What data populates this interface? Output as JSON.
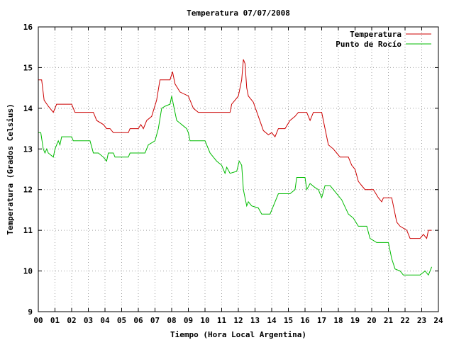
{
  "chart_data": {
    "type": "line",
    "title": "Temperatura 07/07/2008",
    "xlabel": "Tiempo (Hora Local Argentina)",
    "ylabel": "Temperatura (Grados Celsius)",
    "xlim": [
      0,
      24
    ],
    "ylim": [
      9,
      16
    ],
    "x_ticks": [
      "00",
      "01",
      "02",
      "03",
      "04",
      "05",
      "06",
      "07",
      "08",
      "09",
      "10",
      "11",
      "12",
      "13",
      "14",
      "15",
      "16",
      "17",
      "18",
      "19",
      "20",
      "21",
      "22",
      "23",
      "24"
    ],
    "y_ticks": [
      "9",
      "10",
      "11",
      "12",
      "13",
      "14",
      "15",
      "16"
    ],
    "grid": true,
    "legend_position": "top-right",
    "series": [
      {
        "name": "Temperatura",
        "color": "#cc0000",
        "points": [
          [
            0.0,
            14.7
          ],
          [
            0.2,
            14.7
          ],
          [
            0.35,
            14.2
          ],
          [
            0.6,
            14.05
          ],
          [
            0.9,
            13.9
          ],
          [
            1.1,
            14.1
          ],
          [
            1.3,
            14.1
          ],
          [
            2.0,
            14.1
          ],
          [
            2.2,
            13.9
          ],
          [
            2.5,
            13.9
          ],
          [
            3.3,
            13.9
          ],
          [
            3.5,
            13.7
          ],
          [
            3.9,
            13.6
          ],
          [
            4.1,
            13.5
          ],
          [
            4.3,
            13.5
          ],
          [
            4.5,
            13.4
          ],
          [
            5.0,
            13.4
          ],
          [
            5.4,
            13.4
          ],
          [
            5.5,
            13.5
          ],
          [
            6.0,
            13.5
          ],
          [
            6.15,
            13.6
          ],
          [
            6.3,
            13.5
          ],
          [
            6.5,
            13.7
          ],
          [
            6.8,
            13.8
          ],
          [
            7.1,
            14.2
          ],
          [
            7.3,
            14.7
          ],
          [
            7.9,
            14.7
          ],
          [
            8.05,
            14.9
          ],
          [
            8.2,
            14.6
          ],
          [
            8.5,
            14.4
          ],
          [
            9.0,
            14.3
          ],
          [
            9.3,
            14.0
          ],
          [
            9.6,
            13.9
          ],
          [
            10.5,
            13.9
          ],
          [
            11.5,
            13.9
          ],
          [
            11.6,
            14.1
          ],
          [
            11.8,
            14.2
          ],
          [
            12.0,
            14.3
          ],
          [
            12.2,
            14.7
          ],
          [
            12.3,
            15.2
          ],
          [
            12.4,
            15.1
          ],
          [
            12.5,
            14.5
          ],
          [
            12.6,
            14.3
          ],
          [
            12.9,
            14.15
          ],
          [
            13.2,
            13.8
          ],
          [
            13.5,
            13.45
          ],
          [
            13.8,
            13.35
          ],
          [
            14.0,
            13.4
          ],
          [
            14.2,
            13.3
          ],
          [
            14.4,
            13.5
          ],
          [
            14.8,
            13.5
          ],
          [
            15.1,
            13.7
          ],
          [
            15.4,
            13.8
          ],
          [
            15.6,
            13.9
          ],
          [
            16.1,
            13.9
          ],
          [
            16.3,
            13.7
          ],
          [
            16.5,
            13.9
          ],
          [
            17.0,
            13.9
          ],
          [
            17.2,
            13.5
          ],
          [
            17.4,
            13.1
          ],
          [
            17.7,
            13.0
          ],
          [
            17.9,
            12.9
          ],
          [
            18.1,
            12.8
          ],
          [
            18.6,
            12.8
          ],
          [
            18.8,
            12.6
          ],
          [
            19.0,
            12.5
          ],
          [
            19.2,
            12.2
          ],
          [
            19.4,
            12.1
          ],
          [
            19.6,
            12.0
          ],
          [
            20.1,
            12.0
          ],
          [
            20.4,
            11.8
          ],
          [
            20.6,
            11.7
          ],
          [
            20.7,
            11.8
          ],
          [
            21.2,
            11.8
          ],
          [
            21.5,
            11.2
          ],
          [
            21.7,
            11.1
          ],
          [
            22.1,
            11.0
          ],
          [
            22.3,
            10.8
          ],
          [
            22.9,
            10.8
          ],
          [
            23.1,
            10.9
          ],
          [
            23.3,
            10.8
          ],
          [
            23.4,
            11.0
          ],
          [
            23.6,
            11.0
          ]
        ]
      },
      {
        "name": "Punto de Rocío",
        "color": "#00bb00",
        "points": [
          [
            0.0,
            13.4
          ],
          [
            0.15,
            13.4
          ],
          [
            0.3,
            13.0
          ],
          [
            0.4,
            12.9
          ],
          [
            0.5,
            13.0
          ],
          [
            0.6,
            12.9
          ],
          [
            0.9,
            12.8
          ],
          [
            1.0,
            13.0
          ],
          [
            1.2,
            13.2
          ],
          [
            1.3,
            13.1
          ],
          [
            1.4,
            13.3
          ],
          [
            2.0,
            13.3
          ],
          [
            2.1,
            13.2
          ],
          [
            2.5,
            13.2
          ],
          [
            3.1,
            13.2
          ],
          [
            3.3,
            12.9
          ],
          [
            3.6,
            12.9
          ],
          [
            3.9,
            12.8
          ],
          [
            4.1,
            12.7
          ],
          [
            4.2,
            12.9
          ],
          [
            4.5,
            12.9
          ],
          [
            4.6,
            12.8
          ],
          [
            5.4,
            12.8
          ],
          [
            5.5,
            12.9
          ],
          [
            6.0,
            12.9
          ],
          [
            6.4,
            12.9
          ],
          [
            6.6,
            13.1
          ],
          [
            6.8,
            13.15
          ],
          [
            7.0,
            13.2
          ],
          [
            7.2,
            13.5
          ],
          [
            7.4,
            14.0
          ],
          [
            7.6,
            14.05
          ],
          [
            7.9,
            14.1
          ],
          [
            8.0,
            14.3
          ],
          [
            8.15,
            14.0
          ],
          [
            8.3,
            13.7
          ],
          [
            8.6,
            13.6
          ],
          [
            8.9,
            13.5
          ],
          [
            9.0,
            13.4
          ],
          [
            9.1,
            13.2
          ],
          [
            9.3,
            13.2
          ],
          [
            10.0,
            13.2
          ],
          [
            10.3,
            12.9
          ],
          [
            10.5,
            12.8
          ],
          [
            10.7,
            12.7
          ],
          [
            11.0,
            12.6
          ],
          [
            11.2,
            12.4
          ],
          [
            11.3,
            12.55
          ],
          [
            11.5,
            12.4
          ],
          [
            11.9,
            12.45
          ],
          [
            12.05,
            12.7
          ],
          [
            12.2,
            12.6
          ],
          [
            12.3,
            12.0
          ],
          [
            12.4,
            11.8
          ],
          [
            12.5,
            11.6
          ],
          [
            12.6,
            11.7
          ],
          [
            12.8,
            11.6
          ],
          [
            13.2,
            11.55
          ],
          [
            13.4,
            11.4
          ],
          [
            13.9,
            11.4
          ],
          [
            14.1,
            11.6
          ],
          [
            14.4,
            11.9
          ],
          [
            15.1,
            11.9
          ],
          [
            15.4,
            12.0
          ],
          [
            15.5,
            12.3
          ],
          [
            16.0,
            12.3
          ],
          [
            16.1,
            12.0
          ],
          [
            16.3,
            12.15
          ],
          [
            16.6,
            12.05
          ],
          [
            16.8,
            12.0
          ],
          [
            17.0,
            11.8
          ],
          [
            17.2,
            12.1
          ],
          [
            17.5,
            12.1
          ],
          [
            17.8,
            11.95
          ],
          [
            18.2,
            11.75
          ],
          [
            18.6,
            11.4
          ],
          [
            18.9,
            11.3
          ],
          [
            19.2,
            11.1
          ],
          [
            19.7,
            11.1
          ],
          [
            19.9,
            10.8
          ],
          [
            20.3,
            10.7
          ],
          [
            21.0,
            10.7
          ],
          [
            21.2,
            10.3
          ],
          [
            21.4,
            10.05
          ],
          [
            21.7,
            10.0
          ],
          [
            21.9,
            9.9
          ],
          [
            22.6,
            9.9
          ],
          [
            22.9,
            9.9
          ],
          [
            23.2,
            10.0
          ],
          [
            23.4,
            9.9
          ],
          [
            23.6,
            10.1
          ]
        ]
      }
    ]
  }
}
